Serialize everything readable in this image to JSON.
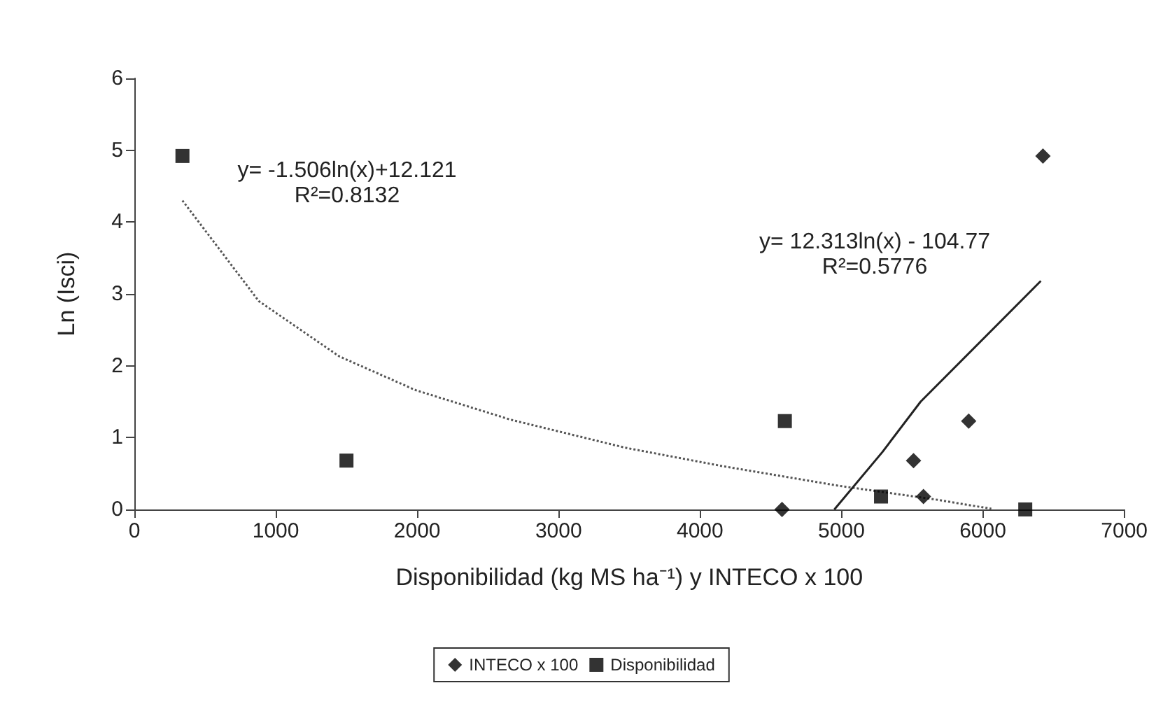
{
  "chart_data": {
    "type": "scatter",
    "xlabel": "Disponibilidad (kg MS ha⁻¹) y INTECO x 100",
    "ylabel": "Ln (Isci)",
    "xlim": [
      0,
      7000
    ],
    "xticks": [
      0,
      1000,
      2000,
      3000,
      4000,
      5000,
      6000,
      7000
    ],
    "ylim": [
      0,
      6
    ],
    "yticks": [
      0,
      1,
      2,
      3,
      4,
      5,
      6
    ],
    "grid": false,
    "legend": "bottom",
    "series": [
      {
        "name": "INTECO x 100",
        "marker": "diamond",
        "color": "#000000",
        "x": [
          4580,
          5510,
          5580,
          5900,
          6425
        ],
        "values": [
          0,
          0.68,
          0.18,
          1.23,
          4.92
        ]
      },
      {
        "name": "Disponibilidad",
        "marker": "square",
        "color": "#000000",
        "x": [
          340,
          1500,
          4600,
          5280,
          6300
        ],
        "values": [
          4.92,
          0.68,
          1.23,
          0.18,
          0
        ]
      },
      {
        "type": "line",
        "marker": "none",
        "line_style": "dotted",
        "color": "#555555",
        "x": [
          340,
          880,
          1450,
          1990,
          2660,
          3470,
          4140,
          4980,
          5660,
          6060
        ],
        "values": [
          4.3,
          2.9,
          2.13,
          1.66,
          1.25,
          0.86,
          0.61,
          0.33,
          0.14,
          0.01
        ]
      },
      {
        "type": "line",
        "marker": "none",
        "line_style": "solid",
        "color": "#222222",
        "x": [
          4950,
          5290,
          5560,
          6410
        ],
        "values": [
          0,
          0.8,
          1.5,
          3.18
        ]
      }
    ],
    "annotations": [
      "y= -1.506ln(x)+12.121",
      "R²=0.8132",
      "y= 12.313ln(x) - 104.77",
      "R²=0.5776"
    ]
  }
}
